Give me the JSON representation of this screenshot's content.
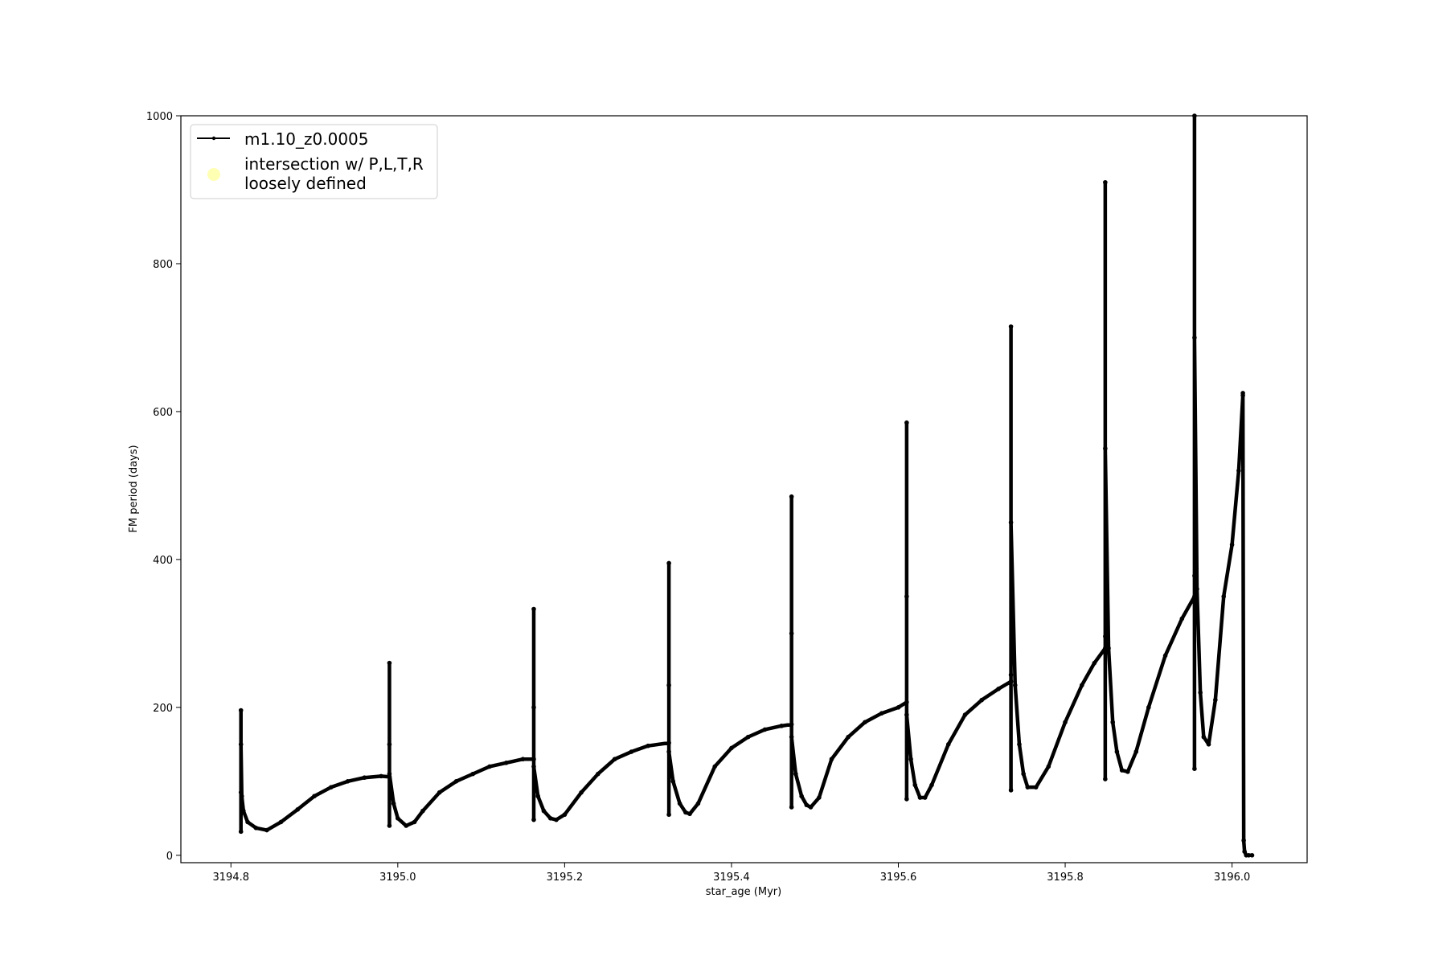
{
  "colors": {
    "series_line": "#000000",
    "intersection_marker": "#ffffb3",
    "legend_border": "#cccccc",
    "axes": "#000000",
    "background": "#ffffff"
  },
  "chart_data": {
    "type": "line",
    "title": "",
    "xlabel": "star_age (Myr)",
    "ylabel": "FM period (days)",
    "xlim": [
      3194.74,
      3196.09
    ],
    "ylim": [
      -10,
      1000
    ],
    "grid": false,
    "legend_position": "upper-left",
    "x_ticks": [
      3194.8,
      3195.0,
      3195.2,
      3195.4,
      3195.6,
      3195.8,
      3196.0
    ],
    "x_tick_labels": [
      "3194.8",
      "3195.0",
      "3195.2",
      "3195.4",
      "3195.6",
      "3195.8",
      "3196.0"
    ],
    "y_ticks": [
      0,
      200,
      400,
      600,
      800,
      1000
    ],
    "y_tick_labels": [
      "0",
      "200",
      "400",
      "600",
      "800",
      "1000"
    ],
    "legend": [
      {
        "label": "m1.10_z0.0005",
        "marker": "line-with-dot"
      },
      {
        "label_line1": "intersection w/ P,L,T,R",
        "label_line2": "loosely defined",
        "marker": "circle"
      }
    ],
    "series": [
      {
        "name": "m1.10_z0.0005",
        "x": [
          3194.812,
          3194.812,
          3194.812,
          3194.812,
          3194.813,
          3194.815,
          3194.82,
          3194.83,
          3194.843,
          3194.86,
          3194.88,
          3194.9,
          3194.92,
          3194.94,
          3194.96,
          3194.98,
          3194.99,
          3194.99,
          3194.99,
          3194.99,
          3194.99,
          3194.995,
          3195.0,
          3195.01,
          3195.02,
          3195.03,
          3195.05,
          3195.07,
          3195.09,
          3195.11,
          3195.13,
          3195.15,
          3195.163,
          3195.163,
          3195.163,
          3195.163,
          3195.163,
          3195.168,
          3195.175,
          3195.183,
          3195.19,
          3195.2,
          3195.22,
          3195.24,
          3195.26,
          3195.28,
          3195.3,
          3195.325,
          3195.325,
          3195.325,
          3195.325,
          3195.325,
          3195.33,
          3195.338,
          3195.345,
          3195.35,
          3195.36,
          3195.38,
          3195.4,
          3195.42,
          3195.44,
          3195.46,
          3195.472,
          3195.472,
          3195.472,
          3195.472,
          3195.472,
          3195.477,
          3195.484,
          3195.49,
          3195.495,
          3195.505,
          3195.52,
          3195.54,
          3195.56,
          3195.58,
          3195.6,
          3195.61,
          3195.61,
          3195.61,
          3195.61,
          3195.61,
          3195.615,
          3195.62,
          3195.626,
          3195.632,
          3195.64,
          3195.66,
          3195.68,
          3195.7,
          3195.72,
          3195.735,
          3195.735,
          3195.735,
          3195.735,
          3195.735,
          3195.74,
          3195.745,
          3195.75,
          3195.755,
          3195.765,
          3195.78,
          3195.8,
          3195.82,
          3195.835,
          3195.848,
          3195.848,
          3195.848,
          3195.848,
          3195.848,
          3195.852,
          3195.857,
          3195.862,
          3195.868,
          3195.875,
          3195.885,
          3195.9,
          3195.92,
          3195.94,
          3195.955,
          3195.955,
          3195.955,
          3195.955,
          3195.955,
          3195.958,
          3195.962,
          3195.966,
          3195.972,
          3195.98,
          3195.99,
          3196.0,
          3196.008,
          3196.013,
          3196.013,
          3196.014,
          3196.015,
          3196.017,
          3196.02,
          3196.024
        ],
        "y": [
          85,
          196,
          32,
          150,
          80,
          60,
          45,
          37,
          34,
          45,
          62,
          80,
          92,
          100,
          105,
          107,
          106,
          260,
          40,
          150,
          110,
          70,
          50,
          40,
          45,
          60,
          85,
          100,
          110,
          120,
          125,
          130,
          130,
          333,
          48,
          200,
          120,
          80,
          60,
          50,
          48,
          55,
          85,
          110,
          130,
          140,
          148,
          152,
          395,
          55,
          230,
          140,
          100,
          70,
          58,
          56,
          70,
          120,
          145,
          160,
          170,
          175,
          177,
          485,
          65,
          300,
          160,
          110,
          80,
          68,
          65,
          78,
          130,
          160,
          180,
          192,
          200,
          207,
          585,
          76,
          350,
          190,
          130,
          95,
          78,
          78,
          95,
          150,
          190,
          210,
          225,
          235,
          244,
          715,
          88,
          450,
          230,
          150,
          110,
          92,
          92,
          120,
          180,
          230,
          260,
          280,
          296,
          910,
          103,
          550,
          280,
          180,
          140,
          115,
          113,
          140,
          200,
          270,
          320,
          350,
          378,
          1000,
          117,
          700,
          360,
          220,
          160,
          150,
          210,
          350,
          420,
          520,
          622,
          625,
          20,
          5,
          0,
          0,
          0
        ]
      }
    ]
  }
}
